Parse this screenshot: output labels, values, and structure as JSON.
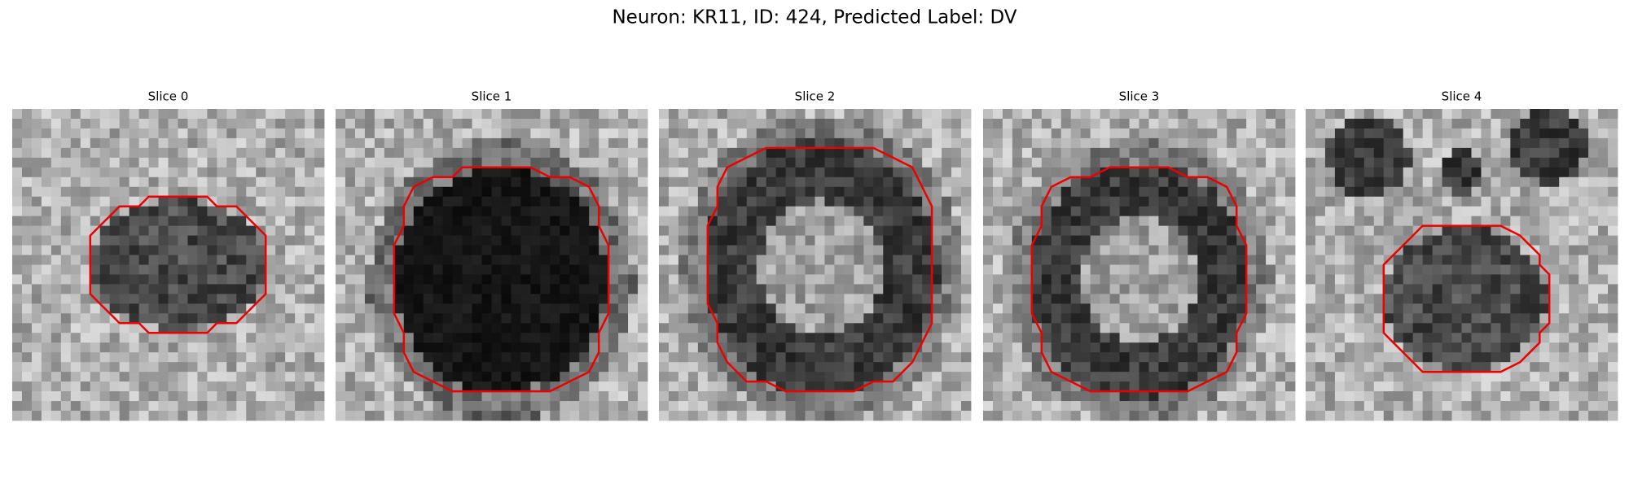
{
  "title": "Neuron: KR11, ID: 424, Predicted Label: DV",
  "panels": [
    {
      "title": "Slice 0"
    },
    {
      "title": "Slice 1"
    },
    {
      "title": "Slice 2"
    },
    {
      "title": "Slice 3"
    },
    {
      "title": "Slice 4"
    }
  ]
}
